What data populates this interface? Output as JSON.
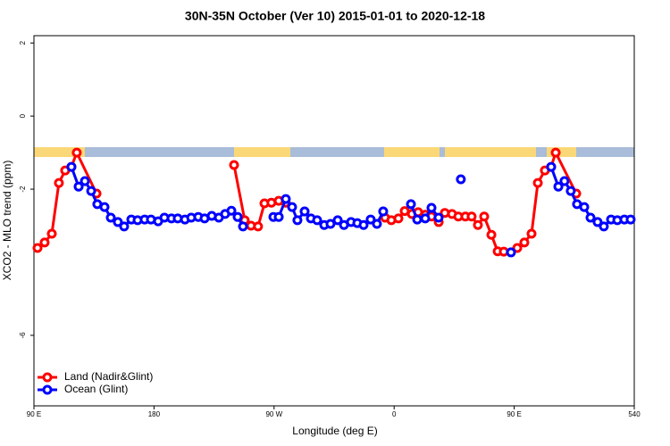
{
  "chart_data": {
    "type": "line",
    "title": "30N-35N October (Ver 10)   2015-01-01 to 2020-12-18",
    "x_label": "Longitude (deg E)",
    "y_label": "XCO2 - MLO trend (ppm)",
    "xlim": [
      90,
      540
    ],
    "xticks": [
      {
        "value": 90,
        "label": "90 E"
      },
      180,
      {
        "value": 270,
        "label": "90 W"
      },
      {
        "value": 360,
        "label": "0"
      },
      {
        "value": 450,
        "label": "90 E"
      },
      540
    ],
    "ylim": [
      -7.93,
      2.2
    ],
    "yticks": [
      2,
      0,
      -2,
      -6
    ],
    "legend": "bottom-left",
    "series": [
      {
        "name": "Land (Nadir&Glint)",
        "color": "#ff0000",
        "x": [
          92.7,
          98,
          103.4,
          108.7,
          113.4,
          118.1,
          122.1,
          136.9,
          null,
          240,
          248,
          252.7,
          258,
          262.8,
          268,
          273.5,
          278.8,
          null,
          353.2,
          357.9,
          363.2,
          367.9,
          373.3,
          378,
          383.3,
          388,
          393.4,
          398,
          403.4,
          408.1,
          413.4,
          418.1,
          422.8,
          427.5,
          432.9,
          437.6,
          442.2,
          452.3,
          457.6,
          463,
          467.7,
          473,
          477.7,
          481.1,
          496.5
        ],
        "values": [
          -3.61,
          -3.46,
          -3.22,
          -1.83,
          -1.49,
          -1.39,
          -1.0,
          -2.12,
          null,
          -1.34,
          -2.85,
          -3.0,
          -3.02,
          -2.39,
          -2.37,
          -2.32,
          -2.37,
          null,
          -2.78,
          -2.85,
          -2.8,
          -2.6,
          -2.68,
          -2.63,
          -2.7,
          -2.75,
          -2.9,
          -2.65,
          -2.68,
          -2.75,
          -2.75,
          -2.75,
          -2.98,
          -2.75,
          -3.25,
          -3.7,
          -3.71,
          -3.61,
          -3.46,
          -3.22,
          -1.83,
          -1.49,
          -1.39,
          -1.0,
          -2.12
        ]
      },
      {
        "name": "Ocean (Glint)",
        "color": "#0000ff",
        "x": [
          118.1,
          123.5,
          128.2,
          132.9,
          137.5,
          142.9,
          147.6,
          152.9,
          157.6,
          163,
          167.7,
          173,
          177.7,
          183.1,
          187.8,
          193.1,
          197.8,
          203.2,
          207.9,
          213.2,
          217.9,
          223.3,
          228.6,
          233.3,
          238,
          242.7,
          246.7,
          null,
          269.5,
          273.5,
          278.8,
          283.5,
          287.5,
          292.9,
          297.6,
          302.3,
          307.6,
          312.3,
          317.7,
          322.4,
          327.7,
          332.4,
          337.1,
          342.4,
          347.1,
          351.8,
          null,
          372.6,
          377.3,
          383.3,
          388,
          393.3,
          null,
          410,
          null,
          447.6,
          null,
          477.7,
          483.1,
          487.7,
          492.4,
          497.1,
          502.5,
          507.2,
          512.5,
          517.2,
          522.6,
          527.3,
          532.6,
          537.3
        ],
        "values": [
          -1.39,
          -1.93,
          -1.78,
          -2.05,
          -2.41,
          -2.49,
          -2.78,
          -2.9,
          -3.02,
          -2.83,
          -2.85,
          -2.83,
          -2.83,
          -2.88,
          -2.78,
          -2.8,
          -2.8,
          -2.83,
          -2.78,
          -2.76,
          -2.8,
          -2.73,
          -2.78,
          -2.68,
          -2.59,
          -2.76,
          -3.02,
          null,
          -2.76,
          -2.76,
          -2.27,
          -2.49,
          -2.85,
          -2.61,
          -2.8,
          -2.85,
          -2.98,
          -2.95,
          -2.85,
          -2.98,
          -2.9,
          -2.93,
          -2.98,
          -2.83,
          -2.95,
          -2.61,
          null,
          -2.41,
          -2.83,
          -2.8,
          -2.51,
          -2.78,
          null,
          -1.73,
          null,
          -3.73,
          null,
          -1.39,
          -1.93,
          -1.78,
          -2.05,
          -2.41,
          -2.49,
          -2.78,
          -2.9,
          -3.02,
          -2.83,
          -2.85,
          -2.83,
          -2.83
        ]
      }
    ]
  }
}
